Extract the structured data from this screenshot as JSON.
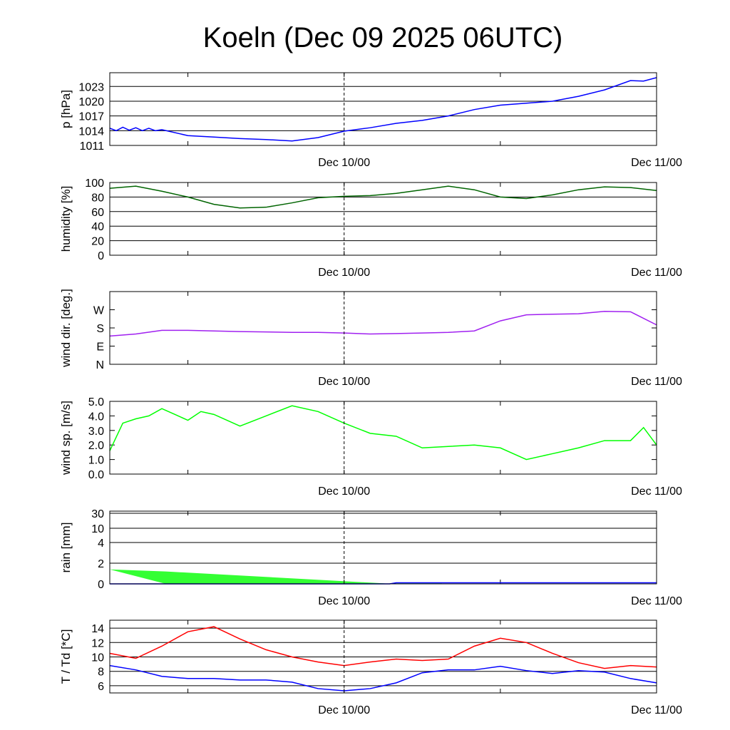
{
  "chart_data": [
    {
      "type": "line",
      "title": "Koeln (Dec 09 2025 06UTC)",
      "x_unit": "hours since Dec 09 06UTC",
      "x_range": [
        0,
        42
      ],
      "x_tick_labels": [
        {
          "x": 18,
          "label": "Dec 10/00"
        },
        {
          "x": 42,
          "label": "Dec 11/00"
        }
      ],
      "x_minor_ticks": [
        6,
        18,
        30
      ],
      "dashed_marker_x": 18,
      "panels": [
        {
          "id": "pressure",
          "ylabel": "p [hPa]",
          "ylim": [
            1011,
            1025.8
          ],
          "yticks": [
            1011,
            1014,
            1017,
            1020,
            1023
          ],
          "grid": true,
          "series": [
            {
              "name": "pressure",
              "color": "#0000ff",
              "x": [
                0,
                0.5,
                1,
                1.5,
                2,
                2.5,
                3,
                3.5,
                4,
                6,
                8,
                10,
                12,
                14,
                16,
                18,
                20,
                22,
                24,
                26,
                28,
                30,
                32,
                34,
                36,
                38,
                40,
                41,
                42
              ],
              "y": [
                1014.5,
                1014.0,
                1014.7,
                1014.1,
                1014.6,
                1014.0,
                1014.5,
                1014.0,
                1014.2,
                1013.0,
                1012.7,
                1012.4,
                1012.2,
                1011.9,
                1012.6,
                1013.9,
                1014.6,
                1015.5,
                1016.1,
                1017.0,
                1018.3,
                1019.2,
                1019.6,
                1020.0,
                1021.0,
                1022.3,
                1024.2,
                1024.1,
                1024.8
              ]
            }
          ]
        },
        {
          "id": "humidity",
          "ylabel": "humidity [%]",
          "ylim": [
            0,
            100
          ],
          "yticks": [
            0,
            20,
            40,
            60,
            80,
            100
          ],
          "grid": true,
          "series": [
            {
              "name": "humidity",
              "color": "#006400",
              "x": [
                0,
                2,
                4,
                6,
                8,
                10,
                12,
                14,
                16,
                18,
                20,
                22,
                24,
                26,
                28,
                30,
                32,
                34,
                36,
                38,
                40,
                42
              ],
              "y": [
                92,
                95,
                88,
                80,
                70,
                65,
                66,
                72,
                79,
                81,
                82,
                85,
                90,
                95,
                90,
                80,
                78,
                83,
                90,
                94,
                93,
                89
              ]
            }
          ]
        },
        {
          "id": "wind_direction",
          "ylabel": "wind dir. [deg.]",
          "ylim": [
            0,
            360
          ],
          "yticks": [
            0,
            90,
            180,
            270
          ],
          "ytick_labels": [
            "N",
            "E",
            "S",
            "W"
          ],
          "grid": false,
          "series": [
            {
              "name": "wind direction",
              "color": "#a020f0",
              "x": [
                0,
                2,
                4,
                6,
                8,
                10,
                12,
                14,
                16,
                18,
                20,
                22,
                24,
                26,
                28,
                30,
                32,
                34,
                36,
                38,
                40,
                42
              ],
              "y": [
                140,
                150,
                168,
                168,
                165,
                162,
                160,
                158,
                158,
                155,
                150,
                152,
                155,
                158,
                165,
                215,
                245,
                248,
                250,
                262,
                260,
                195
              ]
            }
          ]
        },
        {
          "id": "wind_speed",
          "ylabel": "wind sp. [m/s]",
          "ylim": [
            0,
            5
          ],
          "yticks": [
            0,
            1,
            2,
            3,
            4,
            5
          ],
          "ytick_labels": [
            "0.0",
            "1.0",
            "2.0",
            "3.0",
            "4.0",
            "5.0"
          ],
          "grid": false,
          "series": [
            {
              "name": "wind speed",
              "color": "#00ff00",
              "x": [
                0,
                1,
                2,
                3,
                4,
                5,
                6,
                7,
                8,
                10,
                12,
                14,
                16,
                18,
                20,
                22,
                24,
                26,
                28,
                30,
                32,
                34,
                36,
                38,
                40,
                41,
                42
              ],
              "y": [
                1.6,
                3.5,
                3.8,
                4.0,
                4.5,
                4.1,
                3.7,
                4.3,
                4.1,
                3.3,
                4.0,
                4.7,
                4.3,
                3.5,
                2.8,
                2.6,
                1.8,
                1.9,
                2.0,
                1.8,
                1.0,
                1.4,
                1.8,
                2.3,
                2.3,
                3.2,
                2.0
              ]
            }
          ]
        },
        {
          "id": "rain",
          "ylabel": "rain [mm]",
          "ylim": [
            0,
            30
          ],
          "yticks": [
            0,
            2,
            4,
            10,
            30
          ],
          "grid": true,
          "scale": "nonlinear",
          "area": {
            "name": "precipitation range",
            "color": "#33ff33",
            "x": [
              0,
              4.3,
              21,
              21.5
            ],
            "upper": [
              1.4,
              1.2,
              0.05,
              0
            ],
            "lower": [
              1.4,
              0,
              0,
              0
            ]
          },
          "area2": {
            "name": "precipitation small",
            "color": "#33ff33",
            "x": [
              21.5,
              25.5
            ],
            "upper": [
              0.05,
              0.05
            ],
            "lower": [
              0,
              0
            ]
          },
          "series": [
            {
              "name": "rain",
              "color": "#0000ff",
              "x": [
                0,
                20,
                21.5,
                22,
                42
              ],
              "y": [
                0,
                0,
                0,
                0.1,
                0.1
              ]
            }
          ]
        },
        {
          "id": "temperature",
          "ylabel": "T / Td [*C]",
          "ylim": [
            5,
            15.1
          ],
          "yticks": [
            6,
            8,
            10,
            12,
            14
          ],
          "grid": true,
          "series": [
            {
              "name": "T",
              "color": "#ff0000",
              "x": [
                0,
                2,
                4,
                6,
                8,
                10,
                12,
                14,
                16,
                18,
                20,
                22,
                24,
                26,
                28,
                30,
                32,
                34,
                36,
                38,
                40,
                42
              ],
              "y": [
                10.5,
                9.8,
                11.5,
                13.5,
                14.2,
                12.5,
                11.0,
                10.0,
                9.3,
                8.8,
                9.3,
                9.7,
                9.5,
                9.7,
                11.5,
                12.6,
                12.0,
                10.5,
                9.2,
                8.4,
                8.8,
                8.6
              ]
            },
            {
              "name": "Td",
              "color": "#0000ff",
              "x": [
                0,
                2,
                4,
                6,
                8,
                10,
                12,
                14,
                16,
                18,
                20,
                22,
                24,
                26,
                28,
                30,
                32,
                34,
                36,
                38,
                40,
                42
              ],
              "y": [
                8.8,
                8.2,
                7.3,
                7.0,
                7.0,
                6.8,
                6.8,
                6.5,
                5.6,
                5.3,
                5.6,
                6.4,
                7.8,
                8.2,
                8.2,
                8.7,
                8.1,
                7.7,
                8.1,
                7.9,
                7.0,
                6.4
              ]
            }
          ]
        }
      ]
    }
  ]
}
